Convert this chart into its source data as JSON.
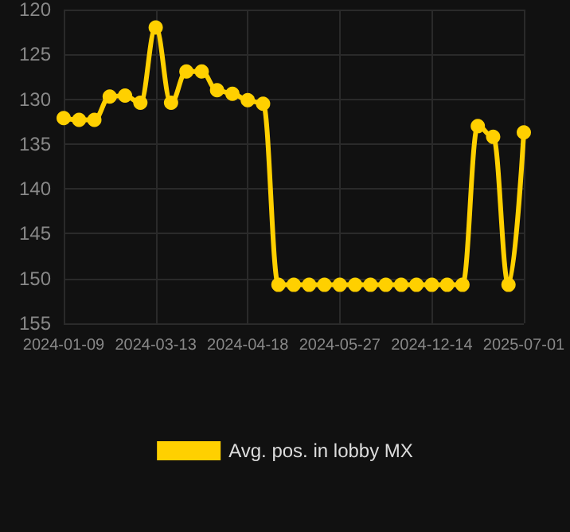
{
  "chart_data": {
    "type": "line",
    "categories": [
      "2024-01-09",
      null,
      null,
      null,
      null,
      null,
      "2024-03-13",
      null,
      null,
      null,
      null,
      null,
      "2024-04-18",
      null,
      null,
      null,
      null,
      null,
      "2024-05-27",
      null,
      null,
      null,
      null,
      null,
      "2024-12-14",
      null,
      null,
      null,
      null,
      null,
      "2025-07-01"
    ],
    "series": [
      {
        "name": "Avg. pos. in lobby MX",
        "color": "#ffd000",
        "values": [
          132.1,
          132.3,
          132.3,
          129.7,
          129.6,
          130.4,
          122.0,
          130.4,
          126.9,
          126.9,
          129.0,
          129.4,
          130.1,
          130.5,
          150.7,
          150.7,
          150.7,
          150.7,
          150.7,
          150.7,
          150.7,
          150.7,
          150.7,
          150.7,
          150.7,
          150.7,
          150.7,
          133.0,
          134.2,
          150.7,
          133.7
        ]
      }
    ],
    "ylim": [
      155,
      120
    ],
    "yticks": [
      120,
      125,
      130,
      135,
      140,
      145,
      150,
      155
    ],
    "grid": true,
    "legend": "bottom",
    "marker": "circle",
    "line_style": "solid"
  }
}
